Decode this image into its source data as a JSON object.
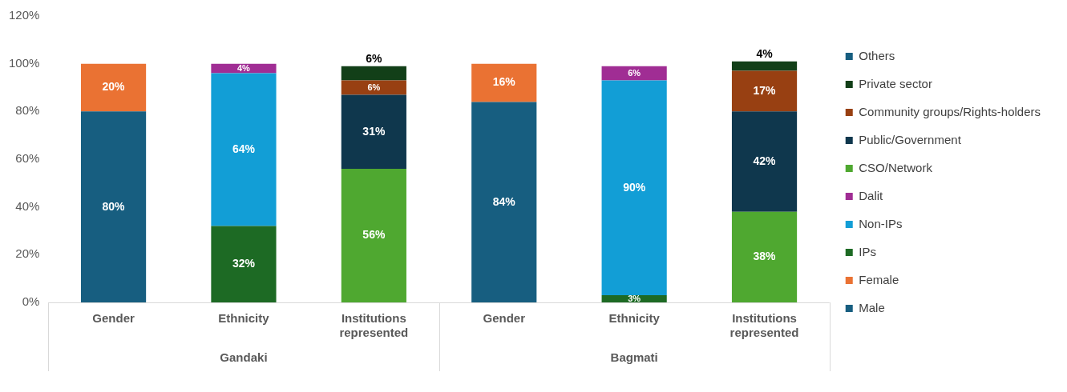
{
  "chart_data": {
    "type": "bar",
    "stacked": true,
    "categories": [
      "Gender",
      "Ethnicity",
      "Institutions represented",
      "Gender",
      "Ethnicity",
      "Institutions represented"
    ],
    "series": [
      {
        "name": "Male",
        "color": "#175e80",
        "values": [
          80,
          null,
          null,
          84,
          null,
          null
        ],
        "value_labels": [
          "80%",
          null,
          null,
          "84%",
          null,
          null
        ]
      },
      {
        "name": "Female",
        "color": "#ea7233",
        "values": [
          20,
          null,
          null,
          16,
          null,
          null
        ],
        "value_labels": [
          "20%",
          null,
          null,
          "16%",
          null,
          null
        ]
      },
      {
        "name": "IPs",
        "color": "#1d6a24",
        "values": [
          null,
          32,
          null,
          null,
          3,
          null
        ],
        "value_labels": [
          null,
          "32%",
          null,
          null,
          "3%",
          null
        ]
      },
      {
        "name": "Non-IPs",
        "color": "#129ed6",
        "values": [
          null,
          64,
          null,
          null,
          90,
          null
        ],
        "value_labels": [
          null,
          "64%",
          null,
          null,
          "90%",
          null
        ]
      },
      {
        "name": "Dalit",
        "color": "#a02d94",
        "values": [
          null,
          4,
          null,
          null,
          6,
          null
        ],
        "value_labels": [
          null,
          "4%",
          null,
          null,
          "6%",
          null
        ]
      },
      {
        "name": "CSO/Network",
        "color": "#4fa830",
        "values": [
          null,
          null,
          56,
          null,
          null,
          38
        ],
        "value_labels": [
          null,
          null,
          "56%",
          null,
          null,
          "38%"
        ]
      },
      {
        "name": "Public/Government",
        "color": "#0f374d",
        "values": [
          null,
          null,
          31,
          null,
          null,
          42
        ],
        "value_labels": [
          null,
          null,
          "31%",
          null,
          null,
          "42%"
        ]
      },
      {
        "name": "Community groups/Rights-holders",
        "color": "#984012",
        "values": [
          null,
          null,
          6,
          null,
          null,
          17
        ],
        "value_labels": [
          null,
          null,
          "6%",
          null,
          null,
          "17%"
        ]
      },
      {
        "name": "Private sector",
        "color": "#123f18",
        "values": [
          null,
          null,
          6,
          null,
          null,
          4
        ],
        "value_labels": [
          null,
          null,
          "6%",
          null,
          null,
          "4%"
        ]
      },
      {
        "name": "Others",
        "color": "#175e80",
        "values": [
          null,
          null,
          null,
          null,
          null,
          null
        ]
      }
    ],
    "ylim": [
      0,
      120
    ],
    "yticks": [
      {
        "value": 0,
        "label": "0%"
      },
      {
        "value": 20,
        "label": "20%"
      },
      {
        "value": 40,
        "label": "40%"
      },
      {
        "value": 60,
        "label": "60%"
      },
      {
        "value": 80,
        "label": "80%"
      },
      {
        "value": 100,
        "label": "100%"
      },
      {
        "value": 120,
        "label": "120%"
      }
    ],
    "grid": false,
    "legend": "right",
    "annotations": [
      "Gandaki",
      "Bagmati"
    ]
  }
}
